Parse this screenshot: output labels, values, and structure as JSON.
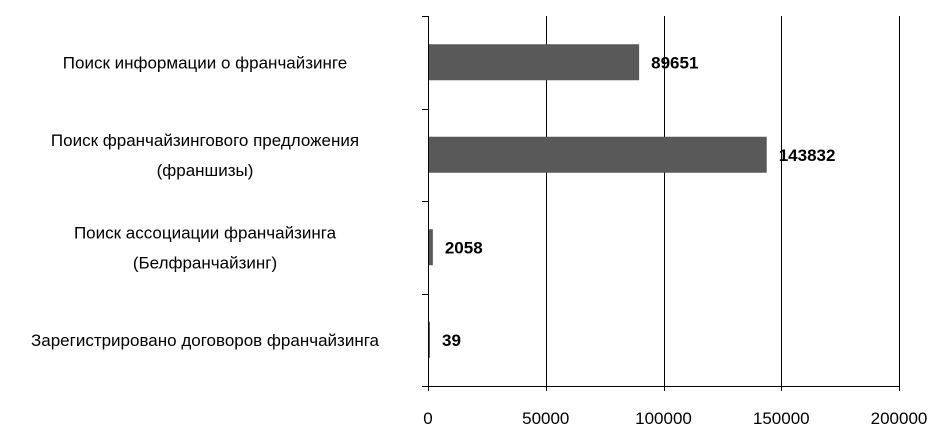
{
  "chart_data": {
    "type": "bar",
    "orientation": "horizontal",
    "categories": [
      [
        "Поиск информации о франчайзинге"
      ],
      [
        "Поиск франчайзингового предложения",
        "(франшизы)"
      ],
      [
        "Поиск ассоциации франчайзинга",
        "(Белфранчайзинг)"
      ],
      [
        "Зарегистрировано договоров франчайзинга"
      ]
    ],
    "values": [
      89651,
      143832,
      2058,
      39
    ],
    "data_labels": [
      "89651",
      "143832",
      "2058",
      "39"
    ],
    "xlim": [
      0,
      200000
    ],
    "x_ticks": [
      0,
      50000,
      100000,
      150000,
      200000
    ],
    "x_tick_labels": [
      "0",
      "50000",
      "100000",
      "150000",
      "200000"
    ],
    "grid": "vertical",
    "legend": "none",
    "title": "",
    "xlabel": "",
    "ylabel": "",
    "colors": {
      "bar": "#595959",
      "gridline": "#000000",
      "axis": "#000000",
      "text": "#000000"
    }
  }
}
